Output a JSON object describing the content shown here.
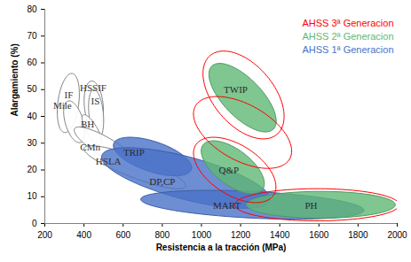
{
  "chart_data": {
    "type": "ellipse",
    "x_label": "Resistencia a la tracción (MPa)",
    "y_label": "Alargamiento (%)",
    "xlim": [
      200,
      2000
    ],
    "xticks": [
      200,
      400,
      600,
      800,
      1000,
      1200,
      1400,
      1600,
      1800,
      2000
    ],
    "ylim": [
      0,
      80
    ],
    "yticks": [
      0,
      10,
      20,
      30,
      40,
      50,
      60,
      70,
      80
    ],
    "grid": false,
    "legend": "top-right",
    "color": "#808080",
    "regions": [
      {
        "label": "IF",
        "center": [
          320,
          45
        ],
        "major_end": [
          342,
          56
        ],
        "minor_end": [
          372,
          44
        ],
        "label_at": [
          322,
          48
        ]
      },
      {
        "label": "HSSIF",
        "center": [
          450,
          44
        ],
        "major_end": [
          430,
          53
        ],
        "minor_end": [
          495,
          46
        ],
        "label_at": [
          447,
          50.5
        ]
      },
      {
        "label": "Mile",
        "center": [
          350,
          38
        ],
        "major_end": [
          300,
          44
        ],
        "minor_end": [
          370,
          43
        ],
        "label_at": [
          290,
          44
        ]
      },
      {
        "label": "IS",
        "center": [
          462,
          41
        ],
        "major_end": [
          455,
          50
        ],
        "minor_end": [
          500,
          40
        ],
        "label_at": [
          458,
          45.5
        ]
      },
      {
        "label": "BH",
        "center": [
          440,
          35
        ],
        "major_end": [
          490,
          31
        ],
        "minor_end": [
          435,
          39
        ],
        "label_at": [
          418,
          37
        ]
      },
      {
        "label": "CMn",
        "center": [
          520,
          28
        ],
        "major_end": [
          690,
          21
        ],
        "minor_end": [
          525,
          32
        ],
        "label_at": [
          432,
          28.5
        ]
      },
      {
        "label": "HSLA",
        "center": [
          660,
          21
        ],
        "major_end": [
          920,
          14
        ],
        "minor_end": [
          665,
          25
        ],
        "label_at": [
          525,
          23
        ]
      }
    ],
    "series": [
      {
        "name": "AHSS 3ª Generacion",
        "color": "#ff0000",
        "type": "outline",
        "regions": [
          {
            "center": [
              1215,
              48
            ],
            "major_end": [
              1420,
              38
            ],
            "minor_end": [
              1245,
              61
            ]
          },
          {
            "center": [
              1210,
              34
            ],
            "major_end": [
              1460,
              28
            ],
            "minor_end": [
              1190,
              46
            ]
          },
          {
            "center": [
              1170,
              20
            ],
            "major_end": [
              1380,
              13
            ],
            "minor_end": [
              1185,
              30
            ]
          },
          {
            "center": [
              1590,
              7
            ],
            "major_end": [
              2010,
              7
            ],
            "minor_end": [
              1590,
              13
            ]
          }
        ]
      },
      {
        "name": "AHSS 2ª Generacion",
        "color": "#5fb874",
        "type": "area",
        "regions": [
          {
            "label": "TWIP",
            "center": [
              1210,
              47
            ],
            "major_end": [
              1380,
              37
            ],
            "minor_end": [
              1235,
              55
            ],
            "label_at": [
              1175,
              50
            ]
          },
          {
            "label": "Q&P",
            "center": [
              1160,
              21
            ],
            "major_end": [
              1320,
              14
            ],
            "minor_end": [
              1180,
              28
            ],
            "label_at": [
              1140,
              20
            ]
          },
          {
            "label": "PH",
            "center": [
              1610,
              7
            ],
            "major_end": [
              1990,
              7
            ],
            "minor_end": [
              1610,
              12
            ],
            "label_at": [
              1560,
              6.5
            ]
          }
        ]
      },
      {
        "name": "AHSS 1ª Generacion",
        "color": "#4a72c8",
        "type": "area",
        "regions": [
          {
            "label": "TRIP",
            "center": [
              750,
              25
            ],
            "major_end": [
              950,
              21
            ],
            "minor_end": [
              745,
              31
            ],
            "label_at": [
              655,
              26.5
            ]
          },
          {
            "label": "DP,CP",
            "center": [
              920,
              17
            ],
            "major_end": [
              1350,
              9
            ],
            "minor_end": [
              930,
              25
            ],
            "label_at": [
              800,
              15.5
            ]
          },
          {
            "label": "MART",
            "center": [
              1260,
              7
            ],
            "major_end": [
              1830,
              5
            ],
            "minor_end": [
              1255,
              12
            ],
            "label_at": [
              1130,
              6.5
            ]
          }
        ]
      }
    ]
  }
}
